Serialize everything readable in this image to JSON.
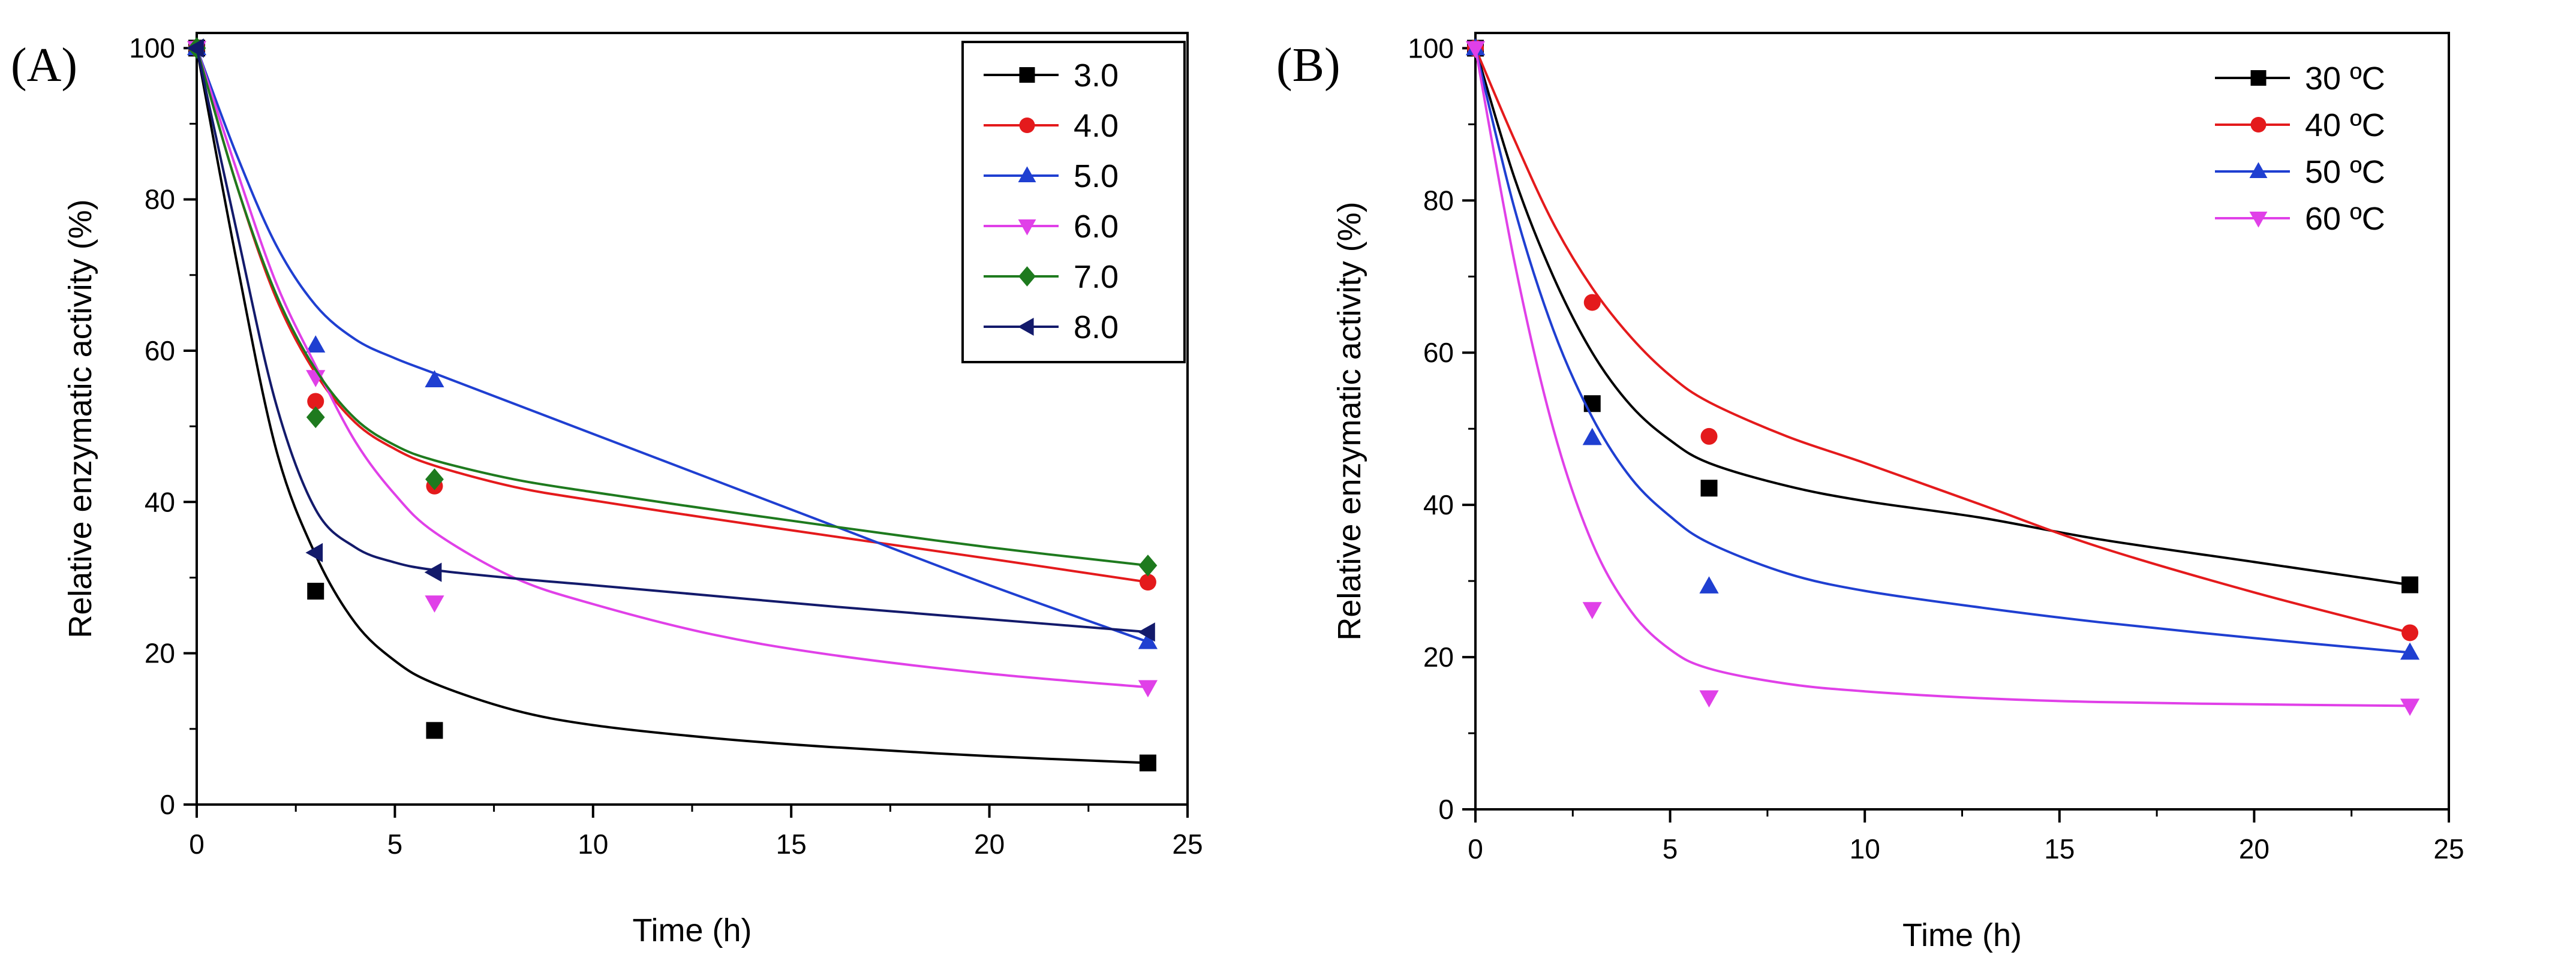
{
  "chart_data": [
    {
      "type": "scatter",
      "panel_label": "(A)",
      "title": "",
      "xlabel": "Time (h)",
      "ylabel": "Relative enzymatic activity (%)",
      "xlim": [
        0,
        25
      ],
      "ylim": [
        0,
        102
      ],
      "xticks": [
        0,
        5,
        10,
        15,
        20,
        25
      ],
      "yticks": [
        0,
        20,
        40,
        60,
        80,
        100
      ],
      "grid": false,
      "legend_position": "top-right",
      "fit_lines": true,
      "x": [
        0,
        3,
        6,
        24
      ],
      "series": [
        {
          "name": "3.0",
          "color": "#000000",
          "marker": "square",
          "values": [
            100,
            28.2,
            9.8,
            5.5
          ],
          "fit": [
            [
              0,
              100
            ],
            [
              1,
              72
            ],
            [
              2,
              47
            ],
            [
              3,
              33
            ],
            [
              4,
              24
            ],
            [
              5,
              19
            ],
            [
              6,
              16
            ],
            [
              8,
              12.5
            ],
            [
              10,
              10.5
            ],
            [
              13,
              8.8
            ],
            [
              16,
              7.6
            ],
            [
              20,
              6.4
            ],
            [
              24,
              5.5
            ]
          ]
        },
        {
          "name": "4.0",
          "color": "#e41a1c",
          "marker": "circle",
          "values": [
            100,
            53.3,
            42.1,
            29.4
          ],
          "fit": [
            [
              0,
              100
            ],
            [
              1,
              82
            ],
            [
              2,
              67
            ],
            [
              3,
              57
            ],
            [
              4,
              50.5
            ],
            [
              5,
              47
            ],
            [
              6,
              44.8
            ],
            [
              8,
              42
            ],
            [
              10,
              40.2
            ],
            [
              13,
              37.8
            ],
            [
              16,
              35.5
            ],
            [
              20,
              32.5
            ],
            [
              24,
              29.4
            ]
          ]
        },
        {
          "name": "5.0",
          "color": "#1f3fd1",
          "marker": "triangle-up",
          "values": [
            100,
            60.7,
            56.1,
            21.5
          ],
          "fit": [
            [
              0,
              100
            ],
            [
              1,
              86
            ],
            [
              2,
              74
            ],
            [
              3,
              66
            ],
            [
              4,
              61.5
            ],
            [
              5,
              59
            ],
            [
              6,
              57
            ],
            [
              8,
              53
            ],
            [
              10,
              49
            ],
            [
              13,
              43
            ],
            [
              16,
              37
            ],
            [
              20,
              29
            ],
            [
              24,
              21.5
            ]
          ]
        },
        {
          "name": "6.0",
          "color": "#e040e8",
          "marker": "triangle-down",
          "values": [
            100,
            56.5,
            26.7,
            15.5
          ],
          "fit": [
            [
              0,
              100
            ],
            [
              1,
              84
            ],
            [
              2,
              69
            ],
            [
              3,
              58
            ],
            [
              4,
              48
            ],
            [
              5,
              41
            ],
            [
              6,
              36
            ],
            [
              8,
              30
            ],
            [
              10,
              26.5
            ],
            [
              13,
              22.5
            ],
            [
              16,
              19.8
            ],
            [
              20,
              17.3
            ],
            [
              24,
              15.5
            ]
          ]
        },
        {
          "name": "7.0",
          "color": "#1e7a1e",
          "marker": "diamond",
          "values": [
            100,
            51.2,
            43.0,
            31.6
          ],
          "fit": [
            [
              0,
              100
            ],
            [
              1,
              82
            ],
            [
              2,
              67.5
            ],
            [
              3,
              57.5
            ],
            [
              4,
              51
            ],
            [
              5,
              47.5
            ],
            [
              6,
              45.5
            ],
            [
              8,
              43
            ],
            [
              10,
              41.3
            ],
            [
              13,
              39
            ],
            [
              16,
              36.8
            ],
            [
              20,
              34
            ],
            [
              24,
              31.6
            ]
          ]
        },
        {
          "name": "8.0",
          "color": "#131a6b",
          "marker": "triangle-left",
          "values": [
            100,
            33.3,
            30.7,
            22.8
          ],
          "fit": [
            [
              0,
              100
            ],
            [
              1,
              76
            ],
            [
              2,
              53
            ],
            [
              3,
              39
            ],
            [
              4,
              34
            ],
            [
              5,
              32
            ],
            [
              6,
              31
            ],
            [
              8,
              29.9
            ],
            [
              10,
              29
            ],
            [
              13,
              27.6
            ],
            [
              16,
              26.2
            ],
            [
              20,
              24.5
            ],
            [
              24,
              22.8
            ]
          ]
        }
      ]
    },
    {
      "type": "scatter",
      "panel_label": "(B)",
      "title": "",
      "xlabel": "Time (h)",
      "ylabel": "Relative enzymatic activity (%)",
      "xlim": [
        0,
        25
      ],
      "ylim": [
        0,
        102
      ],
      "xticks": [
        0,
        5,
        10,
        15,
        20,
        25
      ],
      "yticks": [
        0,
        20,
        40,
        60,
        80,
        100
      ],
      "grid": false,
      "legend_position": "top-right",
      "fit_lines": true,
      "x": [
        0,
        3,
        6,
        24
      ],
      "series": [
        {
          "name": "30 ºC",
          "color": "#000000",
          "marker": "square",
          "values": [
            100,
            53.3,
            42.2,
            29.5
          ],
          "fit": [
            [
              0,
              100
            ],
            [
              1,
              83
            ],
            [
              2,
              70
            ],
            [
              3,
              60
            ],
            [
              4,
              53
            ],
            [
              5,
              48.5
            ],
            [
              6,
              45.5
            ],
            [
              8,
              42.5
            ],
            [
              10,
              40.5
            ],
            [
              13,
              38.3
            ],
            [
              16,
              35.5
            ],
            [
              20,
              32.5
            ],
            [
              24,
              29.5
            ]
          ]
        },
        {
          "name": "40 ºC",
          "color": "#e41a1c",
          "marker": "circle",
          "values": [
            100,
            66.6,
            49.0,
            23.2
          ],
          "fit": [
            [
              0,
              100
            ],
            [
              1,
              88
            ],
            [
              2,
              77
            ],
            [
              3,
              68.5
            ],
            [
              4,
              62
            ],
            [
              5,
              57
            ],
            [
              6,
              53.5
            ],
            [
              8,
              49
            ],
            [
              10,
              45.5
            ],
            [
              13,
              40
            ],
            [
              16,
              34.5
            ],
            [
              20,
              28.5
            ],
            [
              24,
              23.2
            ]
          ]
        },
        {
          "name": "50 ºC",
          "color": "#1f3fd1",
          "marker": "triangle-up",
          "values": [
            100,
            48.8,
            29.3,
            20.6
          ],
          "fit": [
            [
              0,
              100
            ],
            [
              1,
              79
            ],
            [
              2,
              63
            ],
            [
              3,
              51.5
            ],
            [
              4,
              43.5
            ],
            [
              5,
              38.5
            ],
            [
              6,
              35
            ],
            [
              8,
              31
            ],
            [
              10,
              28.7
            ],
            [
              13,
              26.5
            ],
            [
              16,
              24.6
            ],
            [
              20,
              22.5
            ],
            [
              24,
              20.6
            ]
          ]
        },
        {
          "name": "60 ºC",
          "color": "#e040e8",
          "marker": "triangle-down",
          "values": [
            100,
            26.3,
            14.7,
            13.6
          ],
          "fit": [
            [
              0,
              100
            ],
            [
              1,
              72
            ],
            [
              2,
              50
            ],
            [
              3,
              35
            ],
            [
              4,
              26
            ],
            [
              5,
              21
            ],
            [
              6,
              18.5
            ],
            [
              8,
              16.5
            ],
            [
              10,
              15.5
            ],
            [
              13,
              14.6
            ],
            [
              16,
              14.1
            ],
            [
              20,
              13.8
            ],
            [
              24,
              13.6
            ]
          ]
        }
      ]
    }
  ]
}
